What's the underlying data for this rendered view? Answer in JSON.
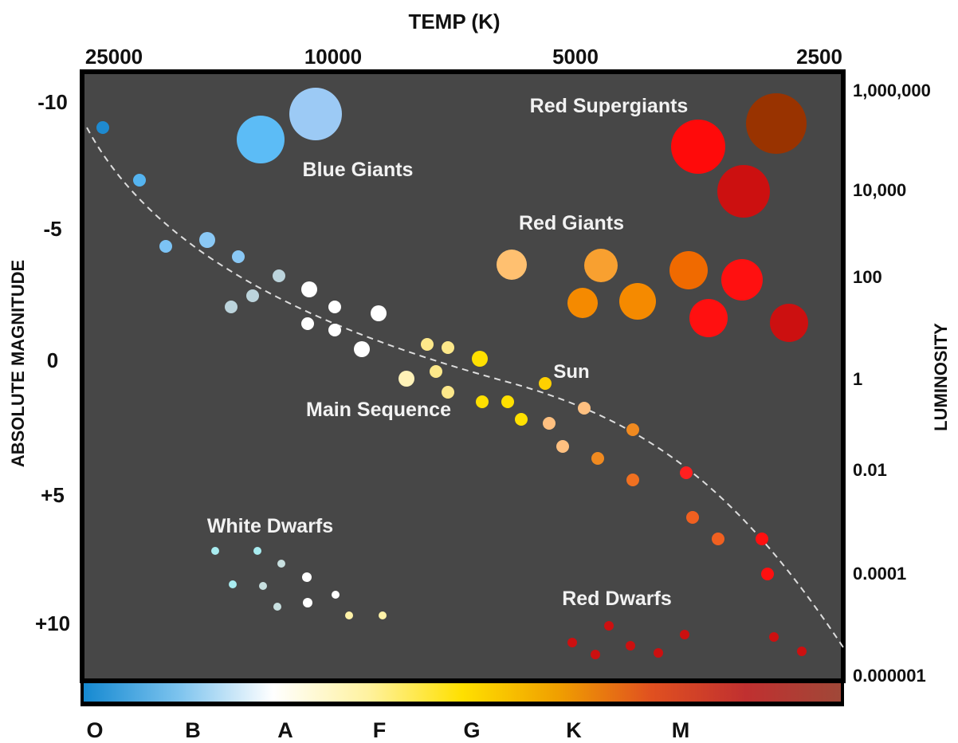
{
  "title": "TEMP (K)",
  "left_axis_label": "ABSOLUTE MAGNITUDE",
  "right_axis_label": "LUMINOSITY",
  "top_ticks": [
    {
      "label": "25000",
      "id": "25000"
    },
    {
      "label": "10000",
      "id": "10000"
    },
    {
      "label": "5000",
      "id": "5000"
    },
    {
      "label": "2500",
      "id": "2500"
    }
  ],
  "left_ticks": [
    {
      "label": "-10",
      "mag": -10
    },
    {
      "label": "-5",
      "mag": -5
    },
    {
      "label": "0",
      "mag": 0
    },
    {
      "label": "+5",
      "mag": 5
    },
    {
      "label": "+10",
      "mag": 10
    }
  ],
  "right_ticks": [
    {
      "label": "1,000,000"
    },
    {
      "label": "10,000"
    },
    {
      "label": "100"
    },
    {
      "label": "1"
    },
    {
      "label": "0.01"
    },
    {
      "label": "0.0001"
    },
    {
      "label": "0.000001"
    }
  ],
  "spectral_classes": [
    "O",
    "B",
    "A",
    "F",
    "G",
    "K",
    "M"
  ],
  "region_labels": {
    "blue_giants": "Blue Giants",
    "red_supergiants": "Red Supergiants",
    "red_giants": "Red Giants",
    "sun": "Sun",
    "main_sequence": "Main Sequence",
    "white_dwarfs": "White Dwarfs",
    "red_dwarfs": "Red Dwarfs"
  },
  "colors": {
    "plot_background": "#474747",
    "frame": "#000000",
    "main_sequence_line": "#dddddd",
    "spectrum_gradient": [
      "#1589d1",
      "#7cc3ee",
      "#ffffff",
      "#fff2a0",
      "#ffe000",
      "#f0a000",
      "#e05020",
      "#c03030",
      "#a04838"
    ]
  },
  "stars": {
    "main_sequence": [
      {
        "color": "#1e8ad0",
        "size": "small"
      },
      {
        "color": "#55b4f0",
        "size": "small"
      },
      {
        "color": "#7cc3f5",
        "size": "small"
      },
      {
        "color": "#8ac8f5",
        "size": "medium"
      },
      {
        "color": "#8ac8f5",
        "size": "small"
      },
      {
        "color": "#bcd4dc",
        "size": "small"
      },
      {
        "color": "#bcd4dc",
        "size": "small"
      },
      {
        "color": "#bcd4dc",
        "size": "small"
      },
      {
        "color": "#ffffff",
        "size": "medium"
      },
      {
        "color": "#ffffff",
        "size": "small"
      },
      {
        "color": "#ffffff",
        "size": "small"
      },
      {
        "color": "#ffffff",
        "size": "small"
      },
      {
        "color": "#ffffff",
        "size": "medium"
      },
      {
        "color": "#ffffff",
        "size": "medium"
      },
      {
        "color": "#fff2b8",
        "size": "medium"
      },
      {
        "color": "#fde88a",
        "size": "small"
      },
      {
        "color": "#fde88a",
        "size": "small"
      },
      {
        "color": "#fde88a",
        "size": "small"
      },
      {
        "color": "#fde88a",
        "size": "small"
      },
      {
        "color": "#ffe000",
        "size": "medium"
      },
      {
        "color": "#ffe000",
        "size": "small"
      },
      {
        "color": "#ffe000",
        "size": "small"
      },
      {
        "color": "#ffe000",
        "size": "small"
      },
      {
        "color": "#ffd000",
        "size": "small"
      },
      {
        "color": "#ffc080",
        "size": "small"
      },
      {
        "color": "#ffc080",
        "size": "small"
      },
      {
        "color": "#ffc080",
        "size": "small"
      },
      {
        "color": "#f08a20",
        "size": "small"
      },
      {
        "color": "#f08a20",
        "size": "small"
      },
      {
        "color": "#f07020",
        "size": "small"
      },
      {
        "color": "#ff2020",
        "size": "small"
      },
      {
        "color": "#f06020",
        "size": "small"
      },
      {
        "color": "#f06020",
        "size": "small"
      },
      {
        "color": "#ff1010",
        "size": "small"
      },
      {
        "color": "#ff1010",
        "size": "small"
      }
    ],
    "giants": [
      {
        "color": "#5cbcf6",
        "size": "large"
      },
      {
        "color": "#9ccaf5",
        "size": "large"
      },
      {
        "color": "#ff0a0a",
        "size": "large"
      },
      {
        "color": "#993300",
        "size": "large"
      },
      {
        "color": "#cc1010",
        "size": "large"
      },
      {
        "color": "#ffc070",
        "size": "medium"
      },
      {
        "color": "#f8a030",
        "size": "medium"
      },
      {
        "color": "#f58a00",
        "size": "medium"
      },
      {
        "color": "#f58a00",
        "size": "medium"
      },
      {
        "color": "#f06a00",
        "size": "medium"
      },
      {
        "color": "#ff1010",
        "size": "medium"
      },
      {
        "color": "#ff1010",
        "size": "medium"
      },
      {
        "color": "#cc1010",
        "size": "medium"
      }
    ],
    "white_dwarfs": [
      {
        "color": "#a8ecf0"
      },
      {
        "color": "#a8ecf0"
      },
      {
        "color": "#c8e0e0"
      },
      {
        "color": "#ffffff"
      },
      {
        "color": "#a8ecf0"
      },
      {
        "color": "#c8e0e0"
      },
      {
        "color": "#ffffff"
      },
      {
        "color": "#c8e0e0"
      },
      {
        "color": "#ffffff"
      },
      {
        "color": "#fff2a8"
      },
      {
        "color": "#fff2a8"
      }
    ],
    "red_dwarfs": [
      {
        "color": "#cc1010"
      },
      {
        "color": "#cc1010"
      },
      {
        "color": "#cc1010"
      },
      {
        "color": "#cc1010"
      },
      {
        "color": "#cc1010"
      },
      {
        "color": "#cc1010"
      },
      {
        "color": "#cc1010"
      },
      {
        "color": "#cc1010"
      }
    ]
  }
}
